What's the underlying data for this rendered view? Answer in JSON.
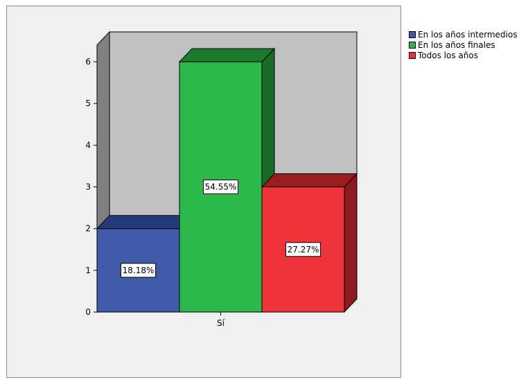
{
  "chart_data": {
    "type": "bar",
    "categories": [
      "Sí"
    ],
    "series": [
      {
        "name": "En los años intermedios",
        "values": [
          2
        ],
        "label": "18.18%",
        "color": "#3f5aa9",
        "top_color": "#24397a",
        "side_color": "#1e2d63"
      },
      {
        "name": "En los años finales",
        "values": [
          6
        ],
        "label": "54.55%",
        "color": "#2db84b",
        "top_color": "#1f7a2f",
        "side_color": "#1a6b28"
      },
      {
        "name": "Todos los años",
        "values": [
          3
        ],
        "label": "27.27%",
        "color": "#ee3338",
        "top_color": "#9b1c21",
        "side_color": "#8b1a1e"
      }
    ],
    "ylim": [
      0,
      6.4
    ],
    "yticks": [
      0,
      1,
      2,
      3,
      4,
      5,
      6
    ],
    "title": "",
    "xlabel": "",
    "ylabel": "",
    "legend_position": "top-right",
    "grid": false,
    "style": "3d-clustered-bar",
    "wall_color": "#c0c0c0",
    "side_wall_color": "#808080"
  }
}
